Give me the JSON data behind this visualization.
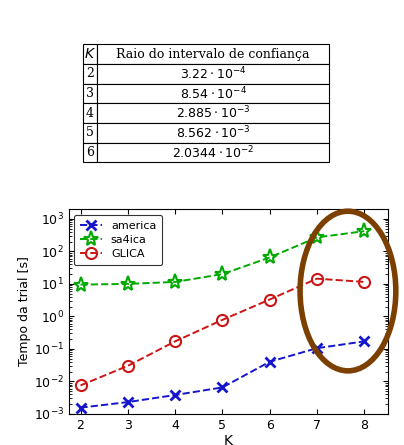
{
  "table_K": [
    "$K$",
    "2",
    "3",
    "4",
    "5",
    "6"
  ],
  "table_values": [
    "Raio do intervalo de confiança",
    "$3.22 \\cdot 10^{-4}$",
    "$8.54 \\cdot 10^{-4}$",
    "$2.885 \\cdot 10^{-3}$",
    "$8.562 \\cdot 10^{-3}$",
    "$2.0344 \\cdot 10^{-2}$"
  ],
  "K": [
    2,
    3,
    4,
    5,
    6,
    7,
    8
  ],
  "america_y": [
    0.00155,
    0.0023,
    0.0038,
    0.0065,
    0.04,
    0.105,
    0.17
  ],
  "sa4ica_y": [
    9.5,
    10.0,
    11.5,
    20.0,
    65.0,
    270.0,
    420.0
  ],
  "glica_y": [
    0.0075,
    0.03,
    0.17,
    0.78,
    3.3,
    14.5,
    11.5
  ],
  "ylabel": "Tempo da trial [s]",
  "xlabel": "K",
  "america_color": "#1515cc",
  "sa4ica_color": "#00aa00",
  "glica_color": "#cc1515",
  "ellipse_color": "#7B3F00",
  "ylim_min": 0.001,
  "ylim_max": 2000,
  "xlim_min": 1.75,
  "xlim_max": 8.5
}
